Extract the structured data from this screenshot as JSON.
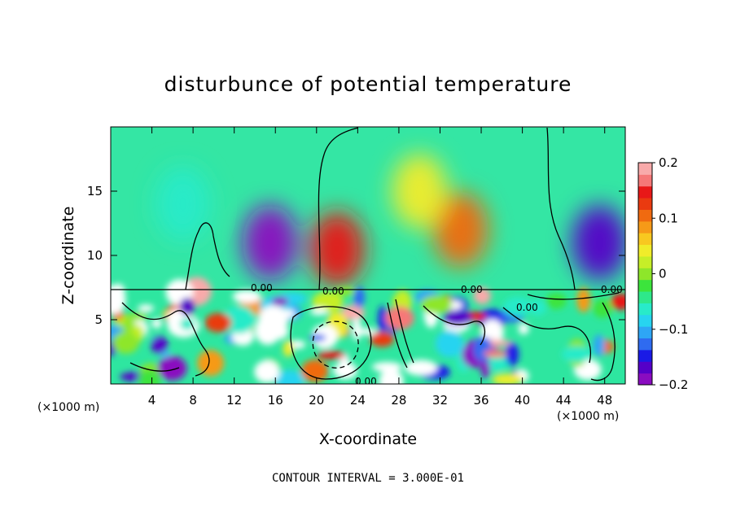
{
  "chart_data": {
    "type": "heatmap",
    "title": "disturbunce of potential temperature",
    "xlabel": "X-coordinate",
    "ylabel": "Z-coordinate",
    "x_unit": "(×1000 m)",
    "x_unit_right": "(×1000 m)",
    "xlim": [
      0,
      50
    ],
    "ylim": [
      0,
      20
    ],
    "x_ticks": [
      "4",
      "8",
      "12",
      "16",
      "20",
      "24",
      "28",
      "32",
      "36",
      "40",
      "44",
      "48"
    ],
    "y_ticks": [
      "5",
      "10",
      "15"
    ],
    "colorbar": {
      "range": [
        -0.2,
        0.2
      ],
      "tick_labels": [
        "0.2",
        "0.1",
        "0",
        "−0.1",
        "−0.2"
      ],
      "colors": [
        "#8a0cc0",
        "#5500c8",
        "#1a1ae6",
        "#2f6bf0",
        "#2ea6f5",
        "#27d4f0",
        "#28ebc9",
        "#2ee88a",
        "#3ce43c",
        "#8ee62a",
        "#c6ee28",
        "#f0ec2a",
        "#f8c820",
        "#f69a18",
        "#f06a10",
        "#ea3a10",
        "#e81818",
        "#f57878",
        "#f8aaaa"
      ]
    },
    "contour_labels": [
      "0.00",
      "0.00",
      "0.00",
      "0.00",
      "0.00",
      "0.00"
    ],
    "annotation": "CONTOUR INTERVAL = 3.000E-01",
    "features": [
      {
        "x": 15.5,
        "z": 11.0,
        "value": -0.18
      },
      {
        "x": 22.0,
        "z": 10.5,
        "value": 0.14
      },
      {
        "x": 34.0,
        "z": 12.0,
        "value": 0.1
      },
      {
        "x": 47.5,
        "z": 11.0,
        "value": -0.17
      },
      {
        "x": 7.0,
        "z": 14.0,
        "value": -0.06
      },
      {
        "x": 30.0,
        "z": 15.0,
        "value": 0.05
      }
    ]
  }
}
